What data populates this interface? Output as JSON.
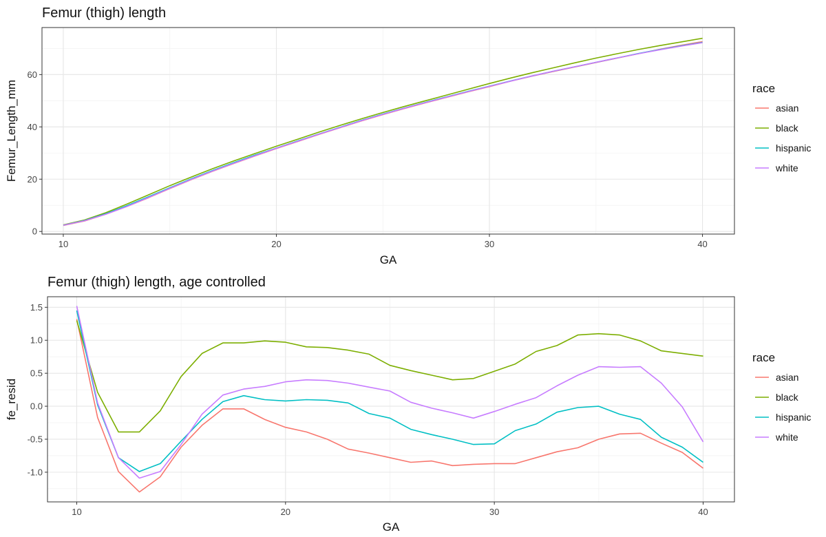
{
  "chart_data": [
    {
      "type": "line",
      "title": "Femur (thigh) length",
      "xlabel": "GA",
      "ylabel": "Femur_Length_mm",
      "xlim": [
        9,
        41.5
      ],
      "ylim": [
        -1,
        78
      ],
      "xticks": [
        10,
        20,
        30,
        40
      ],
      "xtick_labels": [
        "10",
        "20",
        "30",
        "40"
      ],
      "yticks": [
        0,
        20,
        40,
        60
      ],
      "ytick_labels": [
        "0",
        "20",
        "40",
        "60"
      ],
      "grid": true,
      "legend": {
        "title": "race",
        "position": "right"
      },
      "x": [
        10,
        11,
        12,
        13,
        14,
        15,
        16,
        17,
        18,
        19,
        20,
        21,
        22,
        23,
        24,
        25,
        26,
        27,
        28,
        29,
        30,
        31,
        32,
        33,
        34,
        35,
        36,
        37,
        38,
        39,
        40
      ],
      "series": [
        {
          "name": "asian",
          "color": "#F8766D",
          "values": [
            2.3,
            4.0,
            6.6,
            9.6,
            12.9,
            16.4,
            19.8,
            23.0,
            26.0,
            28.9,
            31.7,
            34.4,
            37.1,
            39.7,
            42.3,
            44.7,
            47.0,
            49.2,
            51.3,
            53.4,
            55.4,
            57.5,
            59.4,
            61.2,
            62.9,
            64.6,
            66.3,
            68.0,
            69.7,
            71.2,
            72.6
          ]
        },
        {
          "name": "black",
          "color": "#7CAE00",
          "values": [
            2.5,
            4.4,
            7.2,
            10.5,
            14.0,
            17.5,
            20.8,
            24.0,
            27.0,
            29.8,
            32.6,
            35.3,
            38.0,
            40.6,
            43.1,
            45.5,
            47.8,
            50.0,
            52.2,
            54.4,
            56.6,
            58.7,
            60.7,
            62.6,
            64.5,
            66.3,
            68.0,
            69.6,
            71.1,
            72.5,
            73.9
          ]
        },
        {
          "name": "hispanic",
          "color": "#00BFC4",
          "values": [
            2.4,
            4.2,
            6.8,
            9.9,
            13.3,
            16.7,
            20.1,
            23.3,
            26.3,
            29.2,
            31.9,
            34.6,
            37.3,
            39.9,
            42.5,
            44.9,
            47.2,
            49.4,
            51.5,
            53.6,
            55.6,
            57.6,
            59.5,
            61.3,
            63.0,
            64.7,
            66.4,
            68.1,
            69.6,
            71.0,
            72.3
          ]
        },
        {
          "name": "white",
          "color": "#C77CFF",
          "values": [
            2.4,
            4.1,
            6.6,
            9.6,
            13.0,
            16.5,
            19.9,
            23.1,
            26.1,
            29.0,
            31.8,
            34.5,
            37.2,
            39.8,
            42.4,
            44.8,
            47.1,
            49.3,
            51.4,
            53.5,
            55.5,
            57.5,
            59.5,
            61.3,
            63.0,
            64.7,
            66.4,
            68.0,
            69.5,
            70.9,
            72.2
          ]
        }
      ]
    },
    {
      "type": "line",
      "title": "Femur (thigh) length, age controlled",
      "xlabel": "GA",
      "ylabel": "fe_resid",
      "xlim": [
        8.6,
        41.5
      ],
      "ylim": [
        -1.45,
        1.66
      ],
      "xticks": [
        10,
        20,
        30,
        40
      ],
      "xtick_labels": [
        "10",
        "20",
        "30",
        "40"
      ],
      "yticks": [
        -1.0,
        -0.5,
        0.0,
        0.5,
        1.0,
        1.5
      ],
      "ytick_labels": [
        "-1.0",
        "-0.5",
        "0.0",
        "0.5",
        "1.0",
        "1.5"
      ],
      "grid": true,
      "legend": {
        "title": "race",
        "position": "right"
      },
      "x": [
        10,
        11,
        12,
        13,
        14,
        15,
        16,
        17,
        18,
        19,
        20,
        21,
        22,
        23,
        24,
        25,
        26,
        27,
        28,
        29,
        30,
        31,
        32,
        33,
        34,
        35,
        36,
        37,
        38,
        39,
        40
      ],
      "series": [
        {
          "name": "asian",
          "color": "#F8766D",
          "values": [
            1.32,
            -0.17,
            -0.99,
            -1.3,
            -1.07,
            -0.62,
            -0.29,
            -0.04,
            -0.04,
            -0.2,
            -0.32,
            -0.39,
            -0.5,
            -0.65,
            -0.71,
            -0.78,
            -0.85,
            -0.83,
            -0.9,
            -0.88,
            -0.87,
            -0.87,
            -0.78,
            -0.69,
            -0.63,
            -0.5,
            -0.42,
            -0.41,
            -0.56,
            -0.7,
            -0.94
          ]
        },
        {
          "name": "black",
          "color": "#7CAE00",
          "values": [
            1.3,
            0.21,
            -0.39,
            -0.39,
            -0.07,
            0.45,
            0.8,
            0.96,
            0.96,
            0.99,
            0.97,
            0.9,
            0.89,
            0.85,
            0.79,
            0.62,
            0.54,
            0.47,
            0.4,
            0.42,
            0.53,
            0.64,
            0.83,
            0.92,
            1.08,
            1.1,
            1.08,
            0.99,
            0.84,
            0.8,
            0.76
          ]
        },
        {
          "name": "hispanic",
          "color": "#00BFC4",
          "values": [
            1.45,
            0.02,
            -0.78,
            -0.99,
            -0.87,
            -0.53,
            -0.2,
            0.07,
            0.16,
            0.1,
            0.08,
            0.1,
            0.09,
            0.05,
            -0.11,
            -0.18,
            -0.35,
            -0.43,
            -0.5,
            -0.58,
            -0.57,
            -0.37,
            -0.27,
            -0.09,
            -0.02,
            0.0,
            -0.12,
            -0.2,
            -0.47,
            -0.62,
            -0.85
          ]
        },
        {
          "name": "white",
          "color": "#C77CFF",
          "values": [
            1.52,
            0.05,
            -0.78,
            -1.09,
            -0.99,
            -0.58,
            -0.12,
            0.17,
            0.26,
            0.3,
            0.37,
            0.4,
            0.39,
            0.35,
            0.29,
            0.23,
            0.06,
            -0.03,
            -0.1,
            -0.18,
            -0.08,
            0.03,
            0.13,
            0.31,
            0.47,
            0.6,
            0.59,
            0.6,
            0.35,
            -0.01,
            -0.54
          ]
        }
      ]
    }
  ]
}
